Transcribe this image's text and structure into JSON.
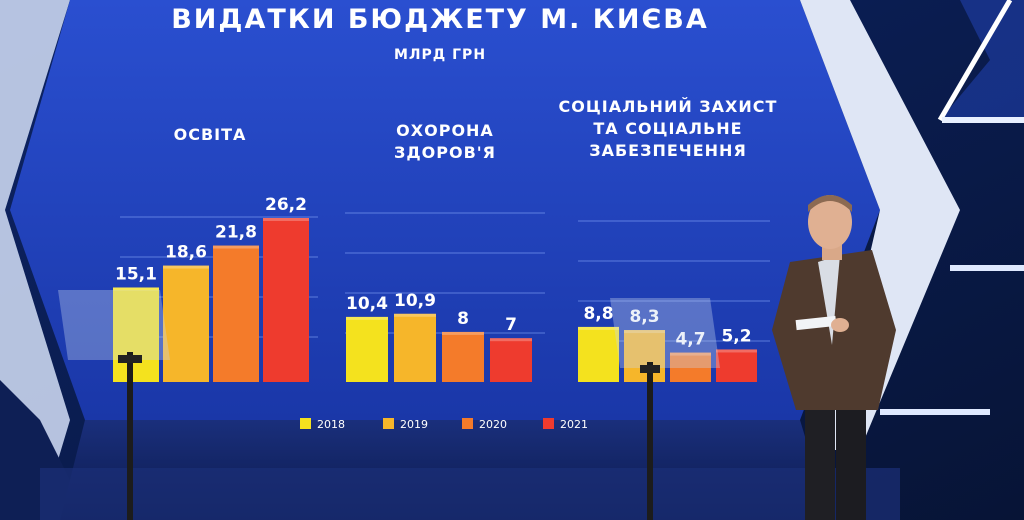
{
  "chart_data": {
    "type": "bar",
    "title": "ВИДАТКИ БЮДЖЕТУ М. КИЄВА",
    "subtitle": "МЛРД ГРН",
    "legend": [
      "2018",
      "2019",
      "2020",
      "2021"
    ],
    "colors": [
      "#f4e21e",
      "#f6b62a",
      "#f47b2a",
      "#ee3b2e"
    ],
    "ylim": [
      0,
      27
    ],
    "panels": [
      {
        "title_lines": [
          "ОСВІТА"
        ],
        "values": [
          15.1,
          18.6,
          21.8,
          26.2
        ],
        "labels": [
          "15,1",
          "18,6",
          "21,8",
          "26,2"
        ]
      },
      {
        "title_lines": [
          "ОХОРОНА",
          "ЗДОРОВ'Я"
        ],
        "values": [
          10.4,
          10.9,
          8,
          7
        ],
        "labels": [
          "10,4",
          "10,9",
          "8",
          "7"
        ]
      },
      {
        "title_lines": [
          "СОЦІАЛЬНИЙ ЗАХИСТ",
          "ТА СОЦІАЛЬНЕ",
          "ЗАБЕЗПЕЧЕННЯ"
        ],
        "values": [
          8.8,
          8.3,
          4.7,
          5.2
        ],
        "labels": [
          "8,8",
          "8,3",
          "4,7",
          "5,2"
        ]
      }
    ]
  }
}
